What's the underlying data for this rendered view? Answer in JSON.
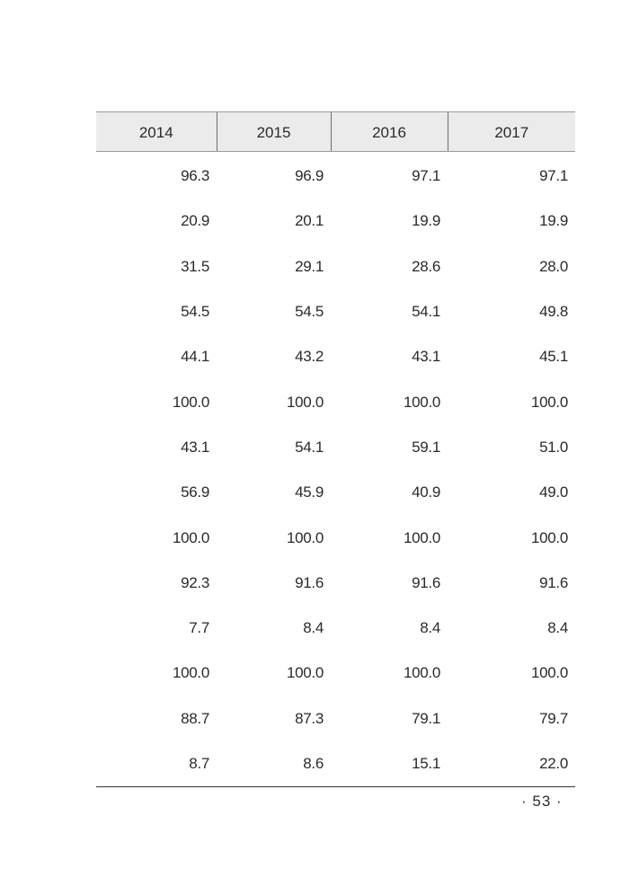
{
  "table": {
    "headers": [
      "2014",
      "2015",
      "2016",
      "2017"
    ],
    "rows": [
      [
        "96.3",
        "96.9",
        "97.1",
        "97.1"
      ],
      [
        "20.9",
        "20.1",
        "19.9",
        "19.9"
      ],
      [
        "31.5",
        "29.1",
        "28.6",
        "28.0"
      ],
      [
        "54.5",
        "54.5",
        "54.1",
        "49.8"
      ],
      [
        "44.1",
        "43.2",
        "43.1",
        "45.1"
      ],
      [
        "100.0",
        "100.0",
        "100.0",
        "100.0"
      ],
      [
        "43.1",
        "54.1",
        "59.1",
        "51.0"
      ],
      [
        "56.9",
        "45.9",
        "40.9",
        "49.0"
      ],
      [
        "100.0",
        "100.0",
        "100.0",
        "100.0"
      ],
      [
        "92.3",
        "91.6",
        "91.6",
        "91.6"
      ],
      [
        "7.7",
        "8.4",
        "8.4",
        "8.4"
      ],
      [
        "100.0",
        "100.0",
        "100.0",
        "100.0"
      ],
      [
        "88.7",
        "87.3",
        "79.1",
        "79.7"
      ],
      [
        "8.7",
        "8.6",
        "15.1",
        "22.0"
      ]
    ]
  },
  "page": {
    "number_label": "· 53 ·"
  }
}
